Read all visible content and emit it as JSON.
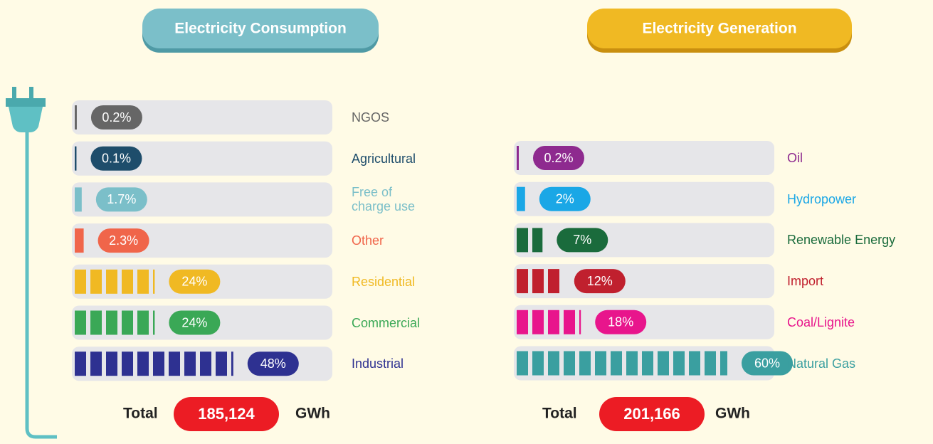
{
  "chart_data": [
    {
      "type": "bar",
      "title": "Electricity Consumption",
      "categories": [
        "NGOS",
        "Agricultural",
        "Free of charge use",
        "Other",
        "Residential",
        "Commercial",
        "Industrial"
      ],
      "values": [
        0.2,
        0.1,
        1.7,
        2.3,
        24,
        24,
        48
      ],
      "value_labels": [
        "0.2%",
        "0.1%",
        "1.7%",
        "2.3%",
        "24%",
        "24%",
        "48%"
      ],
      "colors": [
        "#666666",
        "#1e4d6b",
        "#7bbfc9",
        "#f0654a",
        "#f0b923",
        "#3aa856",
        "#2e3191"
      ],
      "total_label": "Total",
      "total": "185,124",
      "unit": "GWh"
    },
    {
      "type": "bar",
      "title": "Electricity Generation",
      "categories": [
        "Oil",
        "Hydropower",
        "Renewable Energy",
        "Import",
        "Coal/Lignite",
        "Natural Gas"
      ],
      "values": [
        0.2,
        2,
        7,
        12,
        18,
        60
      ],
      "value_labels": [
        "0.2%",
        "2%",
        "7%",
        "12%",
        "18%",
        "60%"
      ],
      "colors": [
        "#8e2a8f",
        "#1aa7e6",
        "#1a6b3c",
        "#c0202e",
        "#e8158c",
        "#3a9fa0"
      ],
      "total_label": "Total",
      "total": "201,166",
      "unit": "GWh"
    }
  ]
}
